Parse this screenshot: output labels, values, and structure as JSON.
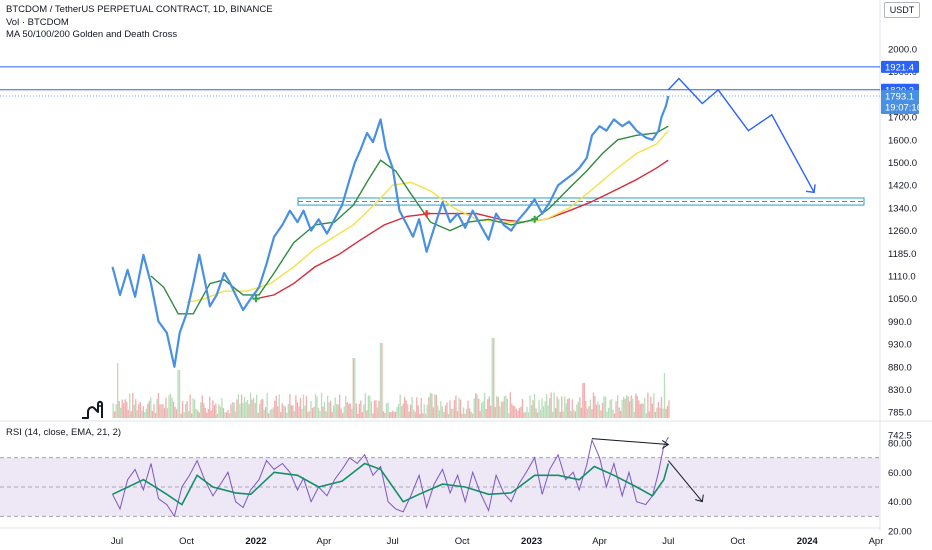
{
  "header": {
    "title": "BTCDOM / TetherUS PERPETUAL CONTRACT, 1D, BINANCE",
    "vol_label": "Vol · BTCDOM",
    "ma_label": "MA 50/100/200 Golden and Death Cross",
    "unit": "USDT"
  },
  "price_labels": {
    "upper_line": "1921.4",
    "mid_line": "1820.3",
    "last_price": "1793.1",
    "countdown": "19:07:16"
  },
  "rsi": {
    "label": "RSI (14, close, EMA, 21, 2)",
    "ticks": [
      "80.00",
      "60.00",
      "40.00",
      "20.00"
    ],
    "band_upper": 70,
    "band_lower": 30
  },
  "colors": {
    "price": "#4a90e2",
    "ma50": "#2e8b3e",
    "ma100": "#f2e14b",
    "ma200": "#d62b3a",
    "hline": "#2962ff",
    "support": "#26a2c9",
    "rsi_line": "#7e57c2",
    "rsi_ma": "#139068",
    "rsi_band": "#ede7f6",
    "vol_up": "#a5d6a7",
    "vol_down": "#ef9a9a",
    "golden_cross": "#2fa84f",
    "death_cross": "#e53935",
    "projection": "#2962ff"
  },
  "chart_data": {
    "type": "line",
    "title": "BTCDOM / TetherUS PERPETUAL CONTRACT, 1D, BINANCE",
    "y_ticks": [
      "2000.0",
      "1900.0",
      "1800.0",
      "1700.0",
      "1600.0",
      "1500.0",
      "1420.0",
      "1340.0",
      "1260.0",
      "1185.0",
      "1110.0",
      "1050.0",
      "990.0",
      "930.0",
      "880.0",
      "830.0",
      "785.0",
      "742.5"
    ],
    "x_ticks": [
      {
        "label": "Jul",
        "t": "2021-07-01",
        "bold": false
      },
      {
        "label": "Oct",
        "t": "2021-10-01",
        "bold": false
      },
      {
        "label": "2022",
        "t": "2022-01-01",
        "bold": true
      },
      {
        "label": "Apr",
        "t": "2022-04-01",
        "bold": false
      },
      {
        "label": "Jul",
        "t": "2022-07-01",
        "bold": false
      },
      {
        "label": "Oct",
        "t": "2022-10-01",
        "bold": false
      },
      {
        "label": "2023",
        "t": "2023-01-01",
        "bold": true
      },
      {
        "label": "Apr",
        "t": "2023-04-01",
        "bold": false
      },
      {
        "label": "Jul",
        "t": "2023-07-01",
        "bold": false
      },
      {
        "label": "Oct",
        "t": "2023-10-01",
        "bold": false
      },
      {
        "label": "2024",
        "t": "2024-01-01",
        "bold": true
      },
      {
        "label": "Apr",
        "t": "2024-04-01",
        "bold": false
      }
    ],
    "series": [
      {
        "key": "price",
        "points": [
          [
            "2021-06-25",
            1140
          ],
          [
            "2021-07-05",
            1060
          ],
          [
            "2021-07-15",
            1130
          ],
          [
            "2021-07-25",
            1055
          ],
          [
            "2021-08-05",
            1180
          ],
          [
            "2021-08-15",
            1090
          ],
          [
            "2021-08-25",
            990
          ],
          [
            "2021-09-05",
            960
          ],
          [
            "2021-09-15",
            880
          ],
          [
            "2021-09-22",
            960
          ],
          [
            "2021-10-01",
            1010
          ],
          [
            "2021-10-10",
            1090
          ],
          [
            "2021-10-18",
            1180
          ],
          [
            "2021-10-25",
            1100
          ],
          [
            "2021-11-01",
            1030
          ],
          [
            "2021-11-10",
            1060
          ],
          [
            "2021-11-20",
            1120
          ],
          [
            "2021-11-28",
            1090
          ],
          [
            "2021-12-05",
            1060
          ],
          [
            "2021-12-15",
            1020
          ],
          [
            "2021-12-25",
            1050
          ],
          [
            "2022-01-05",
            1080
          ],
          [
            "2022-01-15",
            1150
          ],
          [
            "2022-01-25",
            1240
          ],
          [
            "2022-02-05",
            1280
          ],
          [
            "2022-02-15",
            1330
          ],
          [
            "2022-02-25",
            1290
          ],
          [
            "2022-03-05",
            1330
          ],
          [
            "2022-03-15",
            1260
          ],
          [
            "2022-03-25",
            1300
          ],
          [
            "2022-04-05",
            1250
          ],
          [
            "2022-04-15",
            1300
          ],
          [
            "2022-04-25",
            1350
          ],
          [
            "2022-05-05",
            1440
          ],
          [
            "2022-05-12",
            1500
          ],
          [
            "2022-05-20",
            1560
          ],
          [
            "2022-05-28",
            1630
          ],
          [
            "2022-06-05",
            1590
          ],
          [
            "2022-06-15",
            1690
          ],
          [
            "2022-06-22",
            1560
          ],
          [
            "2022-07-01",
            1480
          ],
          [
            "2022-07-10",
            1330
          ],
          [
            "2022-07-20",
            1280
          ],
          [
            "2022-07-28",
            1240
          ],
          [
            "2022-08-05",
            1300
          ],
          [
            "2022-08-15",
            1190
          ],
          [
            "2022-08-25",
            1270
          ],
          [
            "2022-09-05",
            1360
          ],
          [
            "2022-09-15",
            1290
          ],
          [
            "2022-09-25",
            1320
          ],
          [
            "2022-10-05",
            1270
          ],
          [
            "2022-10-15",
            1330
          ],
          [
            "2022-10-25",
            1280
          ],
          [
            "2022-11-05",
            1230
          ],
          [
            "2022-11-15",
            1320
          ],
          [
            "2022-11-25",
            1280
          ],
          [
            "2022-12-05",
            1260
          ],
          [
            "2022-12-15",
            1300
          ],
          [
            "2022-12-25",
            1330
          ],
          [
            "2023-01-05",
            1370
          ],
          [
            "2023-01-15",
            1320
          ],
          [
            "2023-01-25",
            1360
          ],
          [
            "2023-02-05",
            1420
          ],
          [
            "2023-02-15",
            1440
          ],
          [
            "2023-02-25",
            1460
          ],
          [
            "2023-03-05",
            1480
          ],
          [
            "2023-03-15",
            1520
          ],
          [
            "2023-03-22",
            1620
          ],
          [
            "2023-04-01",
            1660
          ],
          [
            "2023-04-10",
            1640
          ],
          [
            "2023-04-20",
            1690
          ],
          [
            "2023-05-01",
            1660
          ],
          [
            "2023-05-10",
            1680
          ],
          [
            "2023-05-20",
            1640
          ],
          [
            "2023-06-01",
            1610
          ],
          [
            "2023-06-10",
            1600
          ],
          [
            "2023-06-18",
            1640
          ],
          [
            "2023-06-22",
            1700
          ],
          [
            "2023-06-28",
            1750
          ],
          [
            "2023-07-01",
            1793.1
          ]
        ]
      },
      {
        "key": "ma50",
        "points": [
          [
            "2021-08-15",
            1110
          ],
          [
            "2021-09-01",
            1080
          ],
          [
            "2021-09-20",
            1010
          ],
          [
            "2021-10-10",
            1010
          ],
          [
            "2021-11-01",
            1090
          ],
          [
            "2021-11-20",
            1100
          ],
          [
            "2021-12-15",
            1060
          ],
          [
            "2022-01-05",
            1060
          ],
          [
            "2022-01-25",
            1120
          ],
          [
            "2022-02-20",
            1220
          ],
          [
            "2022-03-20",
            1280
          ],
          [
            "2022-04-15",
            1290
          ],
          [
            "2022-05-10",
            1350
          ],
          [
            "2022-05-30",
            1440
          ],
          [
            "2022-06-15",
            1510
          ],
          [
            "2022-07-05",
            1470
          ],
          [
            "2022-07-25",
            1390
          ],
          [
            "2022-08-20",
            1290
          ],
          [
            "2022-09-15",
            1260
          ],
          [
            "2022-10-10",
            1290
          ],
          [
            "2022-11-05",
            1300
          ],
          [
            "2022-12-05",
            1280
          ],
          [
            "2023-01-05",
            1300
          ],
          [
            "2023-01-25",
            1340
          ],
          [
            "2023-02-20",
            1410
          ],
          [
            "2023-03-15",
            1470
          ],
          [
            "2023-04-05",
            1540
          ],
          [
            "2023-04-25",
            1600
          ],
          [
            "2023-05-20",
            1620
          ],
          [
            "2023-06-15",
            1630
          ],
          [
            "2023-07-01",
            1660
          ]
        ]
      },
      {
        "key": "ma100",
        "points": [
          [
            "2021-10-01",
            1040
          ],
          [
            "2021-10-25",
            1050
          ],
          [
            "2021-11-20",
            1070
          ],
          [
            "2021-12-20",
            1070
          ],
          [
            "2022-01-20",
            1090
          ],
          [
            "2022-02-20",
            1140
          ],
          [
            "2022-03-20",
            1200
          ],
          [
            "2022-04-15",
            1240
          ],
          [
            "2022-05-10",
            1280
          ],
          [
            "2022-06-10",
            1360
          ],
          [
            "2022-07-01",
            1420
          ],
          [
            "2022-07-25",
            1430
          ],
          [
            "2022-08-20",
            1400
          ],
          [
            "2022-09-20",
            1340
          ],
          [
            "2022-10-20",
            1300
          ],
          [
            "2022-11-20",
            1290
          ],
          [
            "2022-12-20",
            1290
          ],
          [
            "2023-01-20",
            1300
          ],
          [
            "2023-02-20",
            1340
          ],
          [
            "2023-03-20",
            1400
          ],
          [
            "2023-04-20",
            1470
          ],
          [
            "2023-05-20",
            1540
          ],
          [
            "2023-06-15",
            1580
          ],
          [
            "2023-07-01",
            1640
          ]
        ]
      },
      {
        "key": "ma200",
        "points": [
          [
            "2022-01-01",
            1050
          ],
          [
            "2022-01-25",
            1060
          ],
          [
            "2022-02-20",
            1090
          ],
          [
            "2022-03-20",
            1140
          ],
          [
            "2022-04-20",
            1180
          ],
          [
            "2022-05-20",
            1230
          ],
          [
            "2022-06-20",
            1280
          ],
          [
            "2022-07-20",
            1310
          ],
          [
            "2022-08-20",
            1320
          ],
          [
            "2022-09-20",
            1320
          ],
          [
            "2022-10-20",
            1320
          ],
          [
            "2022-11-20",
            1300
          ],
          [
            "2022-12-20",
            1290
          ],
          [
            "2023-01-20",
            1300
          ],
          [
            "2023-02-20",
            1330
          ],
          [
            "2023-03-20",
            1360
          ],
          [
            "2023-04-20",
            1400
          ],
          [
            "2023-05-20",
            1440
          ],
          [
            "2023-06-15",
            1480
          ],
          [
            "2023-07-01",
            1510
          ]
        ]
      }
    ],
    "crosses": [
      {
        "kind": "golden",
        "t": "2022-01-01",
        "y": 1050
      },
      {
        "kind": "death",
        "t": "2022-08-15",
        "y": 1320
      },
      {
        "kind": "golden",
        "t": "2023-01-05",
        "y": 1300
      }
    ],
    "horizontal_lines": [
      1921.4,
      1820.3
    ],
    "last_price_line": 1793.1,
    "support_zone": [
      1350,
      1375
    ],
    "projection": [
      [
        "2023-07-01",
        1820
      ],
      [
        "2023-07-15",
        1870
      ],
      [
        "2023-08-15",
        1760
      ],
      [
        "2023-09-05",
        1820
      ],
      [
        "2023-10-15",
        1640
      ],
      [
        "2023-11-15",
        1710
      ],
      [
        "2024-01-10",
        1395
      ]
    ],
    "rsi_values": [
      [
        "2021-06-25",
        45
      ],
      [
        "2021-07-05",
        35
      ],
      [
        "2021-07-15",
        55
      ],
      [
        "2021-07-25",
        62
      ],
      [
        "2021-08-05",
        48
      ],
      [
        "2021-08-15",
        66
      ],
      [
        "2021-08-25",
        42
      ],
      [
        "2021-09-05",
        38
      ],
      [
        "2021-09-15",
        30
      ],
      [
        "2021-09-25",
        50
      ],
      [
        "2021-10-05",
        58
      ],
      [
        "2021-10-15",
        68
      ],
      [
        "2021-10-25",
        55
      ],
      [
        "2021-11-05",
        44
      ],
      [
        "2021-11-15",
        52
      ],
      [
        "2021-11-25",
        60
      ],
      [
        "2021-12-05",
        40
      ],
      [
        "2021-12-15",
        36
      ],
      [
        "2021-12-25",
        48
      ],
      [
        "2022-01-05",
        55
      ],
      [
        "2022-01-15",
        68
      ],
      [
        "2022-01-25",
        62
      ],
      [
        "2022-02-05",
        66
      ],
      [
        "2022-02-15",
        60
      ],
      [
        "2022-02-25",
        48
      ],
      [
        "2022-03-05",
        56
      ],
      [
        "2022-03-15",
        40
      ],
      [
        "2022-03-25",
        50
      ],
      [
        "2022-04-05",
        44
      ],
      [
        "2022-04-15",
        55
      ],
      [
        "2022-04-25",
        62
      ],
      [
        "2022-05-05",
        70
      ],
      [
        "2022-05-15",
        66
      ],
      [
        "2022-05-25",
        72
      ],
      [
        "2022-06-05",
        58
      ],
      [
        "2022-06-15",
        64
      ],
      [
        "2022-06-25",
        40
      ],
      [
        "2022-07-05",
        35
      ],
      [
        "2022-07-15",
        33
      ],
      [
        "2022-07-25",
        44
      ],
      [
        "2022-08-05",
        58
      ],
      [
        "2022-08-15",
        36
      ],
      [
        "2022-08-25",
        52
      ],
      [
        "2022-09-05",
        62
      ],
      [
        "2022-09-15",
        46
      ],
      [
        "2022-09-25",
        58
      ],
      [
        "2022-10-05",
        40
      ],
      [
        "2022-10-15",
        60
      ],
      [
        "2022-10-25",
        46
      ],
      [
        "2022-11-05",
        34
      ],
      [
        "2022-11-15",
        58
      ],
      [
        "2022-11-25",
        46
      ],
      [
        "2022-12-05",
        40
      ],
      [
        "2022-12-15",
        52
      ],
      [
        "2022-12-25",
        60
      ],
      [
        "2023-01-05",
        70
      ],
      [
        "2023-01-15",
        45
      ],
      [
        "2023-01-25",
        62
      ],
      [
        "2023-02-05",
        72
      ],
      [
        "2023-02-15",
        55
      ],
      [
        "2023-02-25",
        60
      ],
      [
        "2023-03-05",
        48
      ],
      [
        "2023-03-15",
        65
      ],
      [
        "2023-03-22",
        82
      ],
      [
        "2023-04-01",
        70
      ],
      [
        "2023-04-10",
        50
      ],
      [
        "2023-04-20",
        66
      ],
      [
        "2023-05-01",
        44
      ],
      [
        "2023-05-10",
        60
      ],
      [
        "2023-05-20",
        40
      ],
      [
        "2023-06-01",
        38
      ],
      [
        "2023-06-10",
        44
      ],
      [
        "2023-06-18",
        60
      ],
      [
        "2023-06-25",
        78
      ],
      [
        "2023-07-01",
        84
      ]
    ],
    "rsi_ma": [
      [
        "2021-06-25",
        45
      ],
      [
        "2021-08-05",
        55
      ],
      [
        "2021-09-05",
        45
      ],
      [
        "2021-09-25",
        38
      ],
      [
        "2021-10-15",
        58
      ],
      [
        "2021-11-05",
        50
      ],
      [
        "2021-12-05",
        46
      ],
      [
        "2021-12-25",
        45
      ],
      [
        "2022-01-25",
        60
      ],
      [
        "2022-02-25",
        58
      ],
      [
        "2022-03-25",
        50
      ],
      [
        "2022-04-25",
        54
      ],
      [
        "2022-05-25",
        66
      ],
      [
        "2022-06-15",
        62
      ],
      [
        "2022-07-15",
        40
      ],
      [
        "2022-08-05",
        45
      ],
      [
        "2022-09-05",
        52
      ],
      [
        "2022-10-05",
        50
      ],
      [
        "2022-11-05",
        45
      ],
      [
        "2022-12-05",
        46
      ],
      [
        "2023-01-05",
        58
      ],
      [
        "2023-02-05",
        58
      ],
      [
        "2023-03-05",
        55
      ],
      [
        "2023-03-25",
        64
      ],
      [
        "2023-04-20",
        58
      ],
      [
        "2023-05-20",
        50
      ],
      [
        "2023-06-10",
        44
      ],
      [
        "2023-06-25",
        55
      ],
      [
        "2023-07-01",
        66
      ]
    ],
    "rsi_divergence": [
      [
        "2023-03-22",
        83
      ],
      [
        "2023-07-01",
        79
      ]
    ],
    "rsi_projection": [
      [
        "2023-07-01",
        68
      ],
      [
        "2023-08-15",
        40
      ]
    ]
  }
}
